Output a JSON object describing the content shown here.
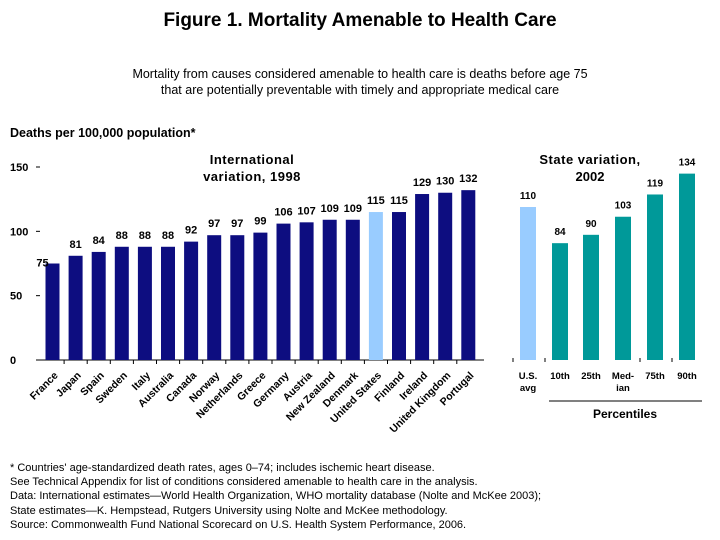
{
  "title": "Figure 1. Mortality Amenable to Health Care",
  "subtitle": [
    "Mortality from causes considered amenable to health care is deaths before age 75",
    "that are potentially preventable with timely and appropriate medical care"
  ],
  "y_axis_label": "Deaths per 100,000 population*",
  "notes": [
    "* Countries' age-standardized death rates, ages 0–74; includes ischemic heart disease.",
    "See Technical Appendix for list of conditions considered amenable to health care in the analysis.",
    "Data: International estimates—World Health Organization, WHO mortality database (Nolte and McKee 2003);",
    "State estimates—K. Hempstead, Rutgers University using Nolte and McKee methodology.",
    "Source: Commonwealth Fund National Scorecard on U.S. Health System Performance, 2006."
  ],
  "colors": {
    "international": "#0d0d80",
    "us": "#99ccff",
    "state": "#009999"
  },
  "chart_data": [
    {
      "type": "bar",
      "title": [
        "International",
        "variation, 1998"
      ],
      "categories": [
        "France",
        "Japan",
        "Spain",
        "Sweden",
        "Italy",
        "Australia",
        "Canada",
        "Norway",
        "Netherlands",
        "Greece",
        "Germany",
        "Austria",
        "New Zealand",
        "Denmark",
        "United States",
        "Finland",
        "Ireland",
        "United Kingdom",
        "Portugal"
      ],
      "values": [
        75,
        81,
        84,
        88,
        88,
        88,
        92,
        97,
        97,
        99,
        106,
        107,
        109,
        109,
        115,
        115,
        129,
        130,
        132
      ],
      "highlight": "United States",
      "ylim": [
        0,
        150
      ],
      "yticks": [
        0,
        50,
        100,
        150
      ],
      "grid": false
    },
    {
      "type": "bar",
      "title": [
        "State variation,",
        "2002"
      ],
      "categories": [
        [
          "U.S.",
          "avg"
        ],
        [
          "10th"
        ],
        [
          "25th"
        ],
        [
          "Med-",
          "ian"
        ],
        [
          "75th"
        ],
        [
          "90th"
        ]
      ],
      "values": [
        110,
        84,
        90,
        103,
        119,
        134
      ],
      "group_label": "Percentiles",
      "ylim": [
        0,
        150
      ],
      "grid": false
    }
  ]
}
